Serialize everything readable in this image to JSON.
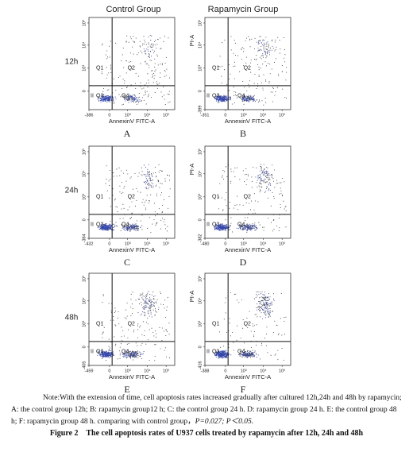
{
  "columns": [
    "Control Group",
    "Rapamycin Group"
  ],
  "rows": [
    "12h",
    "24h",
    "48h"
  ],
  "panels": [
    {
      "letter": "A",
      "x_axis": "AnnexinV FITC-A",
      "quadrants": [
        "Q1",
        "Q2",
        "Q3",
        "Q4"
      ],
      "gate_mark": "II",
      "x_ticks": [
        "-386",
        "0",
        "10³",
        "10⁴",
        "10⁵"
      ],
      "y_ticks": [
        "0",
        "10³",
        "10⁴",
        "10⁵"
      ]
    },
    {
      "letter": "B",
      "x_axis": "AnnexinV FITC-A",
      "y_axis": "PI-A",
      "quadrants": [
        "Q1",
        "Q2",
        "Q3",
        "Q4"
      ],
      "gate_mark": "II",
      "x_ticks": [
        "-351",
        "0",
        "10³",
        "10⁴",
        "10⁵"
      ],
      "y_ticks": [
        "-399",
        "0",
        "10³",
        "10⁴",
        "10⁵"
      ]
    },
    {
      "letter": "C",
      "x_axis": "AnnexinV FITC-A",
      "quadrants": [
        "Q1",
        "Q2",
        "Q3",
        "Q4"
      ],
      "gate_mark": "II",
      "x_ticks": [
        "-432",
        "0",
        "10³",
        "10⁴",
        "10⁵"
      ],
      "y_ticks": [
        "-384",
        "0",
        "10³",
        "10⁴",
        "10⁵"
      ]
    },
    {
      "letter": "D",
      "x_axis": "AnnexinV FITC-A",
      "y_axis": "PI-A",
      "quadrants": [
        "Q1",
        "Q2",
        "Q3",
        "Q4"
      ],
      "gate_mark": "II",
      "x_ticks": [
        "-480",
        "0",
        "10³",
        "10⁴",
        "10⁵"
      ],
      "y_ticks": [
        "-382",
        "0",
        "10³",
        "10⁴",
        "10⁵"
      ]
    },
    {
      "letter": "E",
      "x_axis": "AnnexinV FITC-A",
      "quadrants": [
        "Q1",
        "Q2",
        "Q3",
        "Q4"
      ],
      "gate_mark": "II",
      "x_ticks": [
        "-459",
        "0",
        "10³",
        "10⁴",
        "10⁵"
      ],
      "y_ticks": [
        "-405",
        "0",
        "10³",
        "10⁴",
        "10⁵"
      ]
    },
    {
      "letter": "F",
      "x_axis": "AnnexinV FITC-A",
      "y_axis": "PI-A",
      "quadrants": [
        "Q1",
        "Q2",
        "Q3",
        "Q4"
      ],
      "gate_mark": "II",
      "x_ticks": [
        "-388",
        "0",
        "10³",
        "10⁴",
        "10⁵"
      ],
      "y_ticks": [
        "-416",
        "0",
        "10³",
        "10⁴",
        "10⁵"
      ]
    }
  ],
  "note": "Note:With the extension of time, cell apoptosis rates increased gradually after cultured 12h,24h and 48h by rapamycin; A: the control group 12h; B: rapamycin group12 h; C: the control group 24 h. D: rapamycin group 24 h. E: the control group 48 h; F: rapamycin group 48 h. comparing with control group，",
  "note_stats": "P=0.027; P＜0.05.",
  "caption": "Figure 2    The cell apoptosis rates of U937 cells treated by rapamycin after 12h, 24h and 48h"
}
